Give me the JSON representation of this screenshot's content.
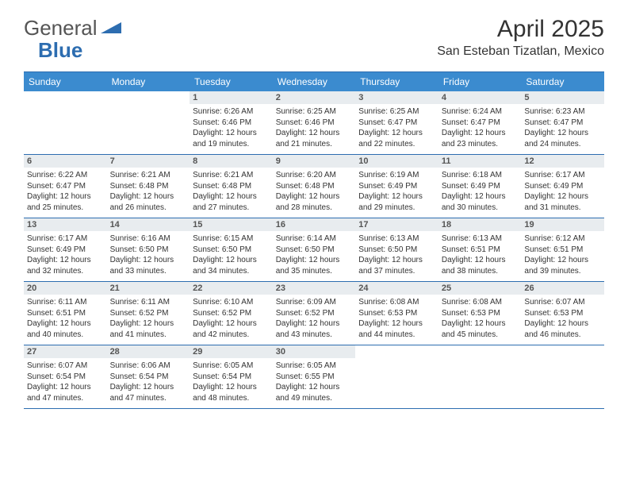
{
  "brand": {
    "part1": "General",
    "part2": "Blue"
  },
  "title": "April 2025",
  "location": "San Esteban Tizatlan, Mexico",
  "colors": {
    "header_bg": "#3b8bcf",
    "border": "#2d6db0",
    "daynum_bg": "#e8ecef",
    "text": "#333333"
  },
  "day_names": [
    "Sunday",
    "Monday",
    "Tuesday",
    "Wednesday",
    "Thursday",
    "Friday",
    "Saturday"
  ],
  "first_weekday": 2,
  "days_in_month": 30,
  "days": {
    "1": {
      "sunrise": "6:26 AM",
      "sunset": "6:46 PM",
      "daylight": "12 hours and 19 minutes."
    },
    "2": {
      "sunrise": "6:25 AM",
      "sunset": "6:46 PM",
      "daylight": "12 hours and 21 minutes."
    },
    "3": {
      "sunrise": "6:25 AM",
      "sunset": "6:47 PM",
      "daylight": "12 hours and 22 minutes."
    },
    "4": {
      "sunrise": "6:24 AM",
      "sunset": "6:47 PM",
      "daylight": "12 hours and 23 minutes."
    },
    "5": {
      "sunrise": "6:23 AM",
      "sunset": "6:47 PM",
      "daylight": "12 hours and 24 minutes."
    },
    "6": {
      "sunrise": "6:22 AM",
      "sunset": "6:47 PM",
      "daylight": "12 hours and 25 minutes."
    },
    "7": {
      "sunrise": "6:21 AM",
      "sunset": "6:48 PM",
      "daylight": "12 hours and 26 minutes."
    },
    "8": {
      "sunrise": "6:21 AM",
      "sunset": "6:48 PM",
      "daylight": "12 hours and 27 minutes."
    },
    "9": {
      "sunrise": "6:20 AM",
      "sunset": "6:48 PM",
      "daylight": "12 hours and 28 minutes."
    },
    "10": {
      "sunrise": "6:19 AM",
      "sunset": "6:49 PM",
      "daylight": "12 hours and 29 minutes."
    },
    "11": {
      "sunrise": "6:18 AM",
      "sunset": "6:49 PM",
      "daylight": "12 hours and 30 minutes."
    },
    "12": {
      "sunrise": "6:17 AM",
      "sunset": "6:49 PM",
      "daylight": "12 hours and 31 minutes."
    },
    "13": {
      "sunrise": "6:17 AM",
      "sunset": "6:49 PM",
      "daylight": "12 hours and 32 minutes."
    },
    "14": {
      "sunrise": "6:16 AM",
      "sunset": "6:50 PM",
      "daylight": "12 hours and 33 minutes."
    },
    "15": {
      "sunrise": "6:15 AM",
      "sunset": "6:50 PM",
      "daylight": "12 hours and 34 minutes."
    },
    "16": {
      "sunrise": "6:14 AM",
      "sunset": "6:50 PM",
      "daylight": "12 hours and 35 minutes."
    },
    "17": {
      "sunrise": "6:13 AM",
      "sunset": "6:50 PM",
      "daylight": "12 hours and 37 minutes."
    },
    "18": {
      "sunrise": "6:13 AM",
      "sunset": "6:51 PM",
      "daylight": "12 hours and 38 minutes."
    },
    "19": {
      "sunrise": "6:12 AM",
      "sunset": "6:51 PM",
      "daylight": "12 hours and 39 minutes."
    },
    "20": {
      "sunrise": "6:11 AM",
      "sunset": "6:51 PM",
      "daylight": "12 hours and 40 minutes."
    },
    "21": {
      "sunrise": "6:11 AM",
      "sunset": "6:52 PM",
      "daylight": "12 hours and 41 minutes."
    },
    "22": {
      "sunrise": "6:10 AM",
      "sunset": "6:52 PM",
      "daylight": "12 hours and 42 minutes."
    },
    "23": {
      "sunrise": "6:09 AM",
      "sunset": "6:52 PM",
      "daylight": "12 hours and 43 minutes."
    },
    "24": {
      "sunrise": "6:08 AM",
      "sunset": "6:53 PM",
      "daylight": "12 hours and 44 minutes."
    },
    "25": {
      "sunrise": "6:08 AM",
      "sunset": "6:53 PM",
      "daylight": "12 hours and 45 minutes."
    },
    "26": {
      "sunrise": "6:07 AM",
      "sunset": "6:53 PM",
      "daylight": "12 hours and 46 minutes."
    },
    "27": {
      "sunrise": "6:07 AM",
      "sunset": "6:54 PM",
      "daylight": "12 hours and 47 minutes."
    },
    "28": {
      "sunrise": "6:06 AM",
      "sunset": "6:54 PM",
      "daylight": "12 hours and 47 minutes."
    },
    "29": {
      "sunrise": "6:05 AM",
      "sunset": "6:54 PM",
      "daylight": "12 hours and 48 minutes."
    },
    "30": {
      "sunrise": "6:05 AM",
      "sunset": "6:55 PM",
      "daylight": "12 hours and 49 minutes."
    }
  }
}
